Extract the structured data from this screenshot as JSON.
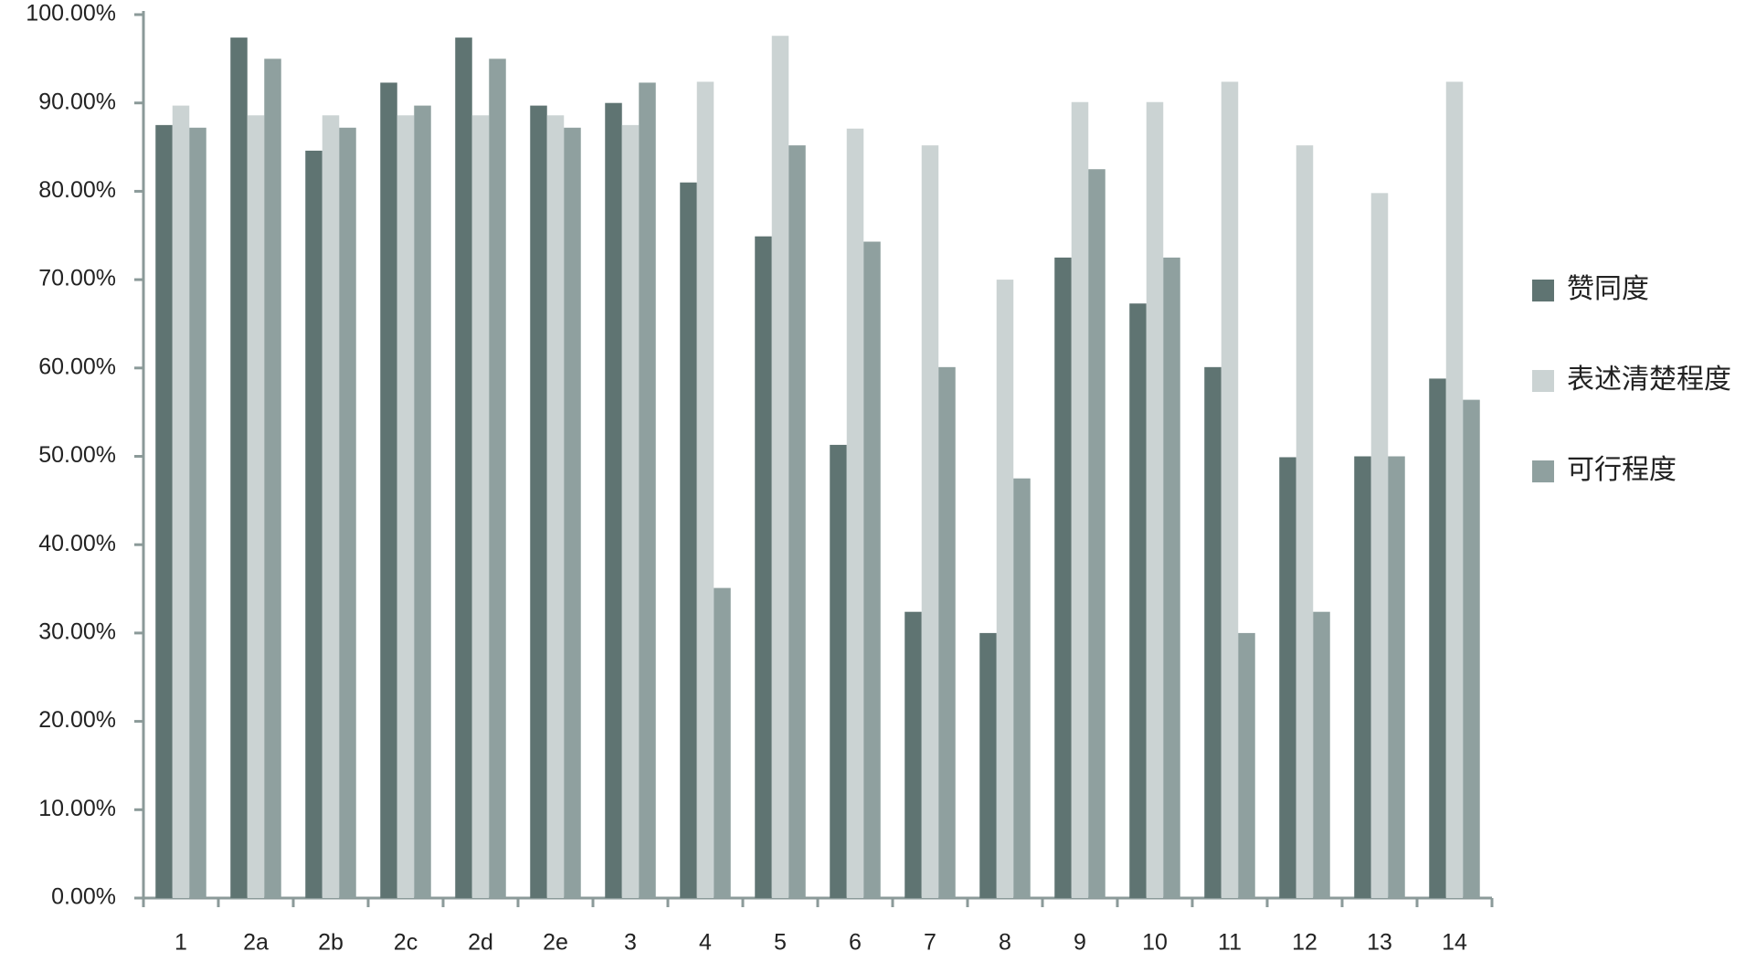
{
  "chart_data": {
    "type": "bar",
    "categories": [
      "1",
      "2a",
      "2b",
      "2c",
      "2d",
      "2e",
      "3",
      "4",
      "5",
      "6",
      "7",
      "8",
      "9",
      "10",
      "11",
      "12",
      "13",
      "14"
    ],
    "series": [
      {
        "name": "赞同度",
        "color": "#5f7472",
        "values": [
          87.5,
          97.4,
          84.6,
          92.3,
          97.4,
          89.7,
          90.0,
          81.0,
          74.9,
          51.3,
          32.4,
          30.0,
          72.5,
          67.3,
          60.1,
          49.9,
          50.0,
          58.8
        ]
      },
      {
        "name": "表述清楚程度",
        "color": "#cbd3d3",
        "values": [
          89.7,
          88.6,
          88.6,
          88.6,
          88.6,
          88.6,
          87.5,
          92.4,
          97.6,
          87.1,
          85.2,
          70.0,
          90.1,
          90.1,
          92.4,
          85.2,
          79.8,
          92.4
        ]
      },
      {
        "name": "可行程度",
        "color": "#8fa09f",
        "values": [
          87.2,
          95.0,
          87.2,
          89.7,
          95.0,
          87.2,
          92.3,
          35.1,
          85.2,
          74.3,
          60.1,
          47.5,
          82.5,
          72.5,
          30.0,
          32.4,
          50.0,
          56.4
        ]
      }
    ],
    "ylim": [
      0,
      100
    ],
    "yticks": [
      {
        "value": 0,
        "label": "0.00%"
      },
      {
        "value": 10,
        "label": "10.00%"
      },
      {
        "value": 20,
        "label": "20.00%"
      },
      {
        "value": 30,
        "label": "30.00%"
      },
      {
        "value": 40,
        "label": "40.00%"
      },
      {
        "value": 50,
        "label": "50.00%"
      },
      {
        "value": 60,
        "label": "60.00%"
      },
      {
        "value": 70,
        "label": "70.00%"
      },
      {
        "value": 80,
        "label": "80.00%"
      },
      {
        "value": 90,
        "label": "90.00%"
      },
      {
        "value": 100,
        "label": "100.00%"
      }
    ],
    "legend": "right",
    "grid": false
  }
}
